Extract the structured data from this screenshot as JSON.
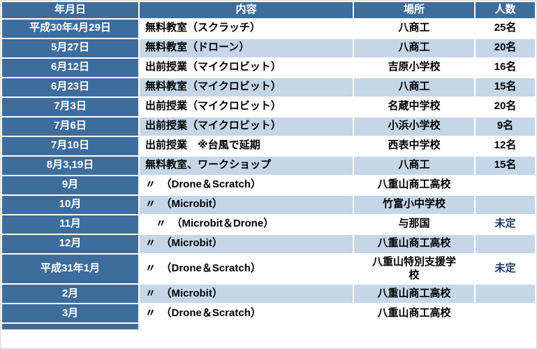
{
  "colors": {
    "header_bg": "#3E6D9C",
    "band_bg": "#C4D6E8",
    "undecided_color": "#17375E"
  },
  "table": {
    "headers": [
      "年月日",
      "内容",
      "場所",
      "人数"
    ],
    "rows": [
      {
        "date": "平成30年4月29日",
        "content": "無料教室（スクラッチ）",
        "place": "八商工",
        "count": "25名"
      },
      {
        "date": "5月27日",
        "content": "無料教室（ドローン）",
        "place": "八商工",
        "count": "20名"
      },
      {
        "date": "6月12日",
        "content": "出前授業（マイクロビット）",
        "place": "吉原小学校",
        "count": "16名"
      },
      {
        "date": "6月23日",
        "content": "無料教室（マイクロビット）",
        "place": "八商工",
        "count": "15名"
      },
      {
        "date": "7月3日",
        "content": "出前授業（マイクロビット）",
        "place": "名蔵中学校",
        "count": "20名"
      },
      {
        "date": "7月6日",
        "content": "出前授業（マイクロビット）",
        "place": "小浜小学校",
        "count": "9名"
      },
      {
        "date": "7月10日",
        "content": "出前授業　※台風で延期",
        "place": "西表中学校",
        "count": "12名"
      },
      {
        "date": "8月3,19日",
        "content": "無料教室、ワークショップ",
        "place": "八商工",
        "count": "15名"
      },
      {
        "date": "9月",
        "content": "〃　（Drone＆Scratch）",
        "place": "八重山商工高校",
        "count": ""
      },
      {
        "date": "10月",
        "content": "〃　（Microbit）",
        "place": "竹富小中学校",
        "count": ""
      },
      {
        "date": "11月",
        "content": "　〃　（Microbit＆Drone）",
        "place": "与那国",
        "count": "未定"
      },
      {
        "date": "12月",
        "content": "〃　（Microbit）",
        "place": "八重山商工高校",
        "count": ""
      },
      {
        "date": "平成31年1月",
        "content": "〃　（Drone＆Scratch）",
        "place": "八重山特別支援学校",
        "count": "未定"
      },
      {
        "date": "2月",
        "content": "〃　（Microbit）",
        "place": "八重山商工高校",
        "count": ""
      },
      {
        "date": "3月",
        "content": "〃　（Drone＆Scratch）",
        "place": "八重山商工高校",
        "count": ""
      }
    ]
  }
}
